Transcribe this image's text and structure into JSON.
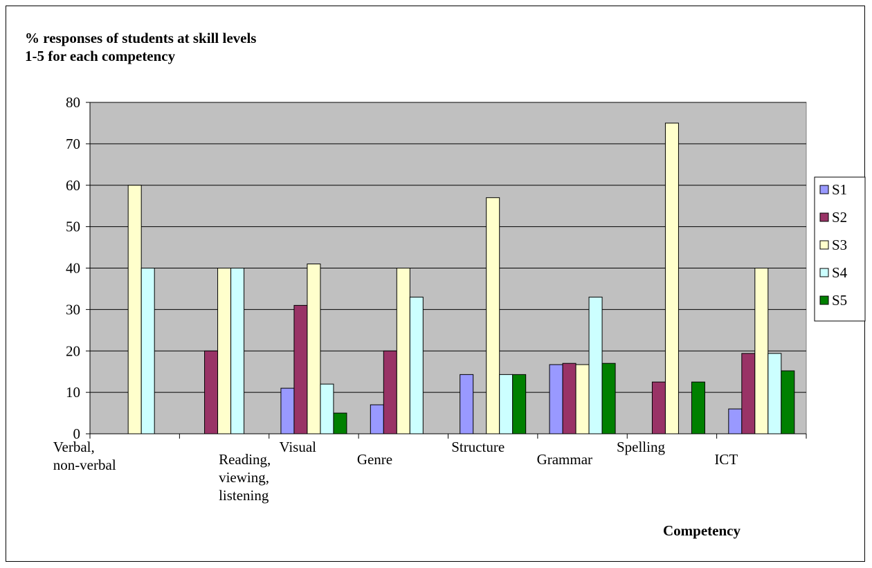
{
  "chart_data": {
    "type": "bar",
    "title_lines": [
      "% responses of students at skill levels",
      "1-5 for each competency"
    ],
    "xlabel": "Competency",
    "ylabel": "",
    "ylim": [
      0,
      80
    ],
    "yticks": [
      0,
      10,
      20,
      30,
      40,
      50,
      60,
      70,
      80
    ],
    "grid": true,
    "legend_position": "right",
    "categories": [
      [
        "Verbal,",
        "non-verbal"
      ],
      [
        "Reading,",
        "viewing,",
        "listening"
      ],
      [
        "Visual"
      ],
      [
        "Genre"
      ],
      [
        "Structure"
      ],
      [
        "Grammar"
      ],
      [
        "Spelling"
      ],
      [
        "ICT"
      ]
    ],
    "series": [
      {
        "name": "S1",
        "color": "#9999ff",
        "values": [
          0,
          0,
          11,
          7,
          14.3,
          16.7,
          0,
          6
        ]
      },
      {
        "name": "S2",
        "color": "#993366",
        "values": [
          0,
          20,
          31,
          20,
          0,
          17,
          12.5,
          19.4
        ]
      },
      {
        "name": "S3",
        "color": "#ffffcc",
        "values": [
          60,
          40,
          41,
          40,
          57,
          16.7,
          75,
          40
        ]
      },
      {
        "name": "S4",
        "color": "#ccffff",
        "values": [
          40,
          40,
          12,
          33,
          14.3,
          33,
          0,
          19.4
        ]
      },
      {
        "name": "S5",
        "color": "#008000",
        "values": [
          0,
          0,
          5,
          0,
          14.3,
          17,
          12.5,
          15.2
        ]
      }
    ],
    "plot_background": "#c0c0c0"
  }
}
